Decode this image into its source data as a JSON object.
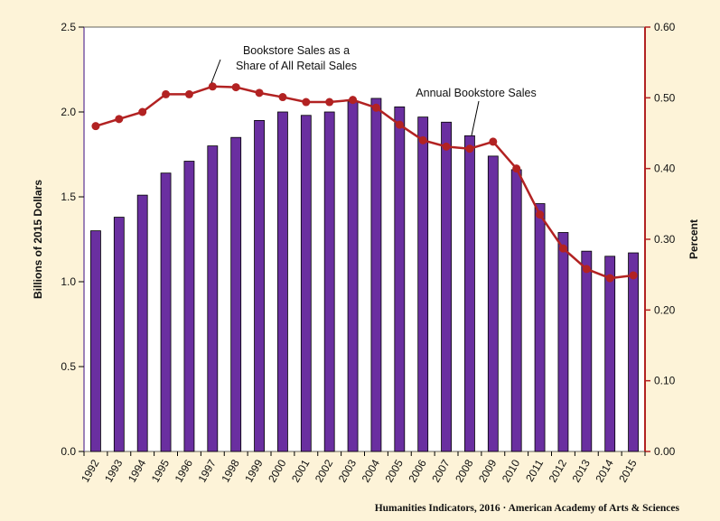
{
  "chart_data": {
    "type": "bar",
    "categories": [
      "1992",
      "1993",
      "1994",
      "1995",
      "1996",
      "1997",
      "1998",
      "1999",
      "2000",
      "2001",
      "2002",
      "2003",
      "2004",
      "2005",
      "2006",
      "2007",
      "2008",
      "2009",
      "2010",
      "2011",
      "2012",
      "2013",
      "2014",
      "2015"
    ],
    "series": [
      {
        "name": "Annual Bookstore Sales",
        "type": "bar",
        "axis": "left",
        "color": "#6a2fa0",
        "values": [
          1.3,
          1.38,
          1.51,
          1.64,
          1.71,
          1.8,
          1.85,
          1.95,
          2.0,
          1.98,
          2.0,
          2.06,
          2.08,
          2.03,
          1.97,
          1.94,
          1.86,
          1.74,
          1.66,
          1.46,
          1.29,
          1.18,
          1.15,
          1.17
        ]
      },
      {
        "name": "Bookstore Sales as a Share of All Retail Sales",
        "type": "line",
        "axis": "right",
        "color": "#b22222",
        "values": [
          0.46,
          0.47,
          0.48,
          0.505,
          0.505,
          0.516,
          0.515,
          0.507,
          0.501,
          0.494,
          0.494,
          0.497,
          0.486,
          0.462,
          0.44,
          0.431,
          0.428,
          0.438,
          0.4,
          0.335,
          0.287,
          0.258,
          0.245,
          0.249
        ]
      }
    ],
    "ylabel": "Billions of 2015 Dollars",
    "ylim": [
      0,
      2.5
    ],
    "yticks": [
      "0.0",
      "0.5",
      "1.0",
      "1.5",
      "2.0",
      "2.5"
    ],
    "y2label": "Percent",
    "y2lim": [
      0,
      0.6
    ],
    "y2ticks": [
      "0.00",
      "0.10",
      "0.20",
      "0.30",
      "0.40",
      "0.50",
      "0.60"
    ],
    "annotations": {
      "share_line1": "Bookstore Sales as a",
      "share_line2": "Share of All Retail Sales",
      "bar_label": "Annual Bookstore Sales"
    },
    "credit": "Humanities Indicators, 2016 · American Academy of Arts & Sciences",
    "grid": false,
    "colors": {
      "plot_background": "#ffffff",
      "page_background": "#fdf3d8",
      "left_axis": "#7b5aa6",
      "right_axis": "#b22222"
    }
  }
}
